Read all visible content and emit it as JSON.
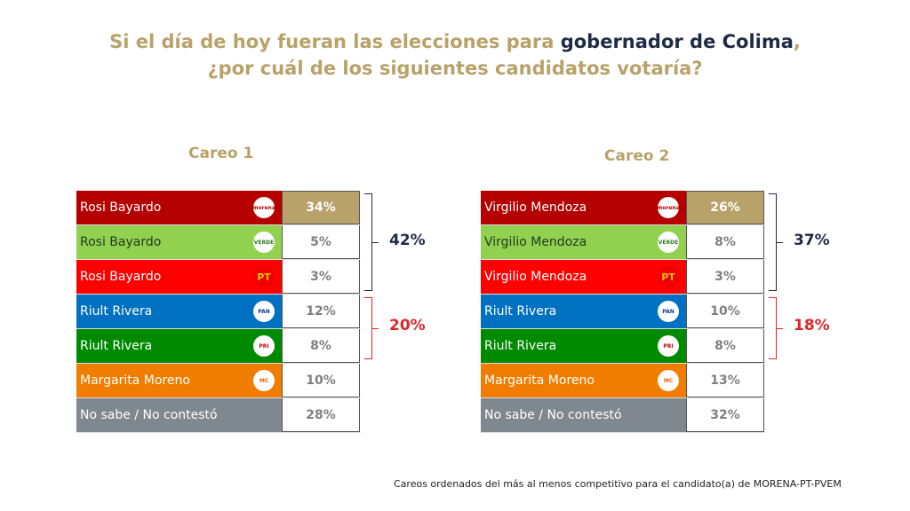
{
  "title": {
    "part1": "Si el día de hoy fueran las elecciones para ",
    "highlight": "gobernador de Colima",
    "part2": ",",
    "line2": "¿por cuál de los siguientes candidatos votaría?"
  },
  "colors": {
    "gold": "#b8a26a",
    "navy": "#1e2b45",
    "morena": "#b50000",
    "verde": "#92d050",
    "pt": "#ff0000",
    "pan": "#0070c0",
    "pri": "#008a00",
    "mc": "#f07c00",
    "ns": "#7f878f",
    "red_bracket": "#e0262b"
  },
  "footer": "Careos ordenados del más al menos competitivo para el candidato(a) de MORENA-PT-PVEM",
  "chart_data": [
    {
      "type": "table",
      "title": "Careo 1",
      "rows": [
        {
          "candidate": "Rosi Bayardo",
          "party": "morena",
          "logo": "morena",
          "value": "34%",
          "color": "#b50000",
          "text": "#fff",
          "highlight": true
        },
        {
          "candidate": "Rosi Bayardo",
          "party": "verde",
          "logo": "VERDE",
          "value": "5%",
          "color": "#92d050",
          "text": "#1f3b1f"
        },
        {
          "candidate": "Rosi Bayardo",
          "party": "pt",
          "logo": "PT",
          "value": "3%",
          "color": "#ff0000",
          "text": "#fff"
        },
        {
          "candidate": "Riult Rivera",
          "party": "pan",
          "logo": "PAN",
          "value": "12%",
          "color": "#0070c0",
          "text": "#fff"
        },
        {
          "candidate": "Riult Rivera",
          "party": "pri",
          "logo": "PRI",
          "value": "8%",
          "color": "#008a00",
          "text": "#fff"
        },
        {
          "candidate": "Margarita Moreno",
          "party": "mc",
          "logo": "MC",
          "value": "10%",
          "color": "#f07c00",
          "text": "#fff"
        },
        {
          "candidate": "No sabe / No contestó",
          "party": "",
          "logo": "",
          "value": "28%",
          "color": "#7f878f",
          "text": "#fff"
        }
      ],
      "groups": [
        {
          "total": "42%",
          "color": "#1e2b45"
        },
        {
          "total": "20%",
          "color": "#e0262b"
        }
      ]
    },
    {
      "type": "table",
      "title": "Careo 2",
      "rows": [
        {
          "candidate": "Virgilio Mendoza",
          "party": "morena",
          "logo": "morena",
          "value": "26%",
          "color": "#b50000",
          "text": "#fff",
          "highlight": true
        },
        {
          "candidate": "Virgilio Mendoza",
          "party": "verde",
          "logo": "VERDE",
          "value": "8%",
          "color": "#92d050",
          "text": "#1f3b1f"
        },
        {
          "candidate": "Virgilio Mendoza",
          "party": "pt",
          "logo": "PT",
          "value": "3%",
          "color": "#ff0000",
          "text": "#fff"
        },
        {
          "candidate": "Riult Rivera",
          "party": "pan",
          "logo": "PAN",
          "value": "10%",
          "color": "#0070c0",
          "text": "#fff"
        },
        {
          "candidate": "Riult Rivera",
          "party": "pri",
          "logo": "PRI",
          "value": "8%",
          "color": "#008a00",
          "text": "#fff"
        },
        {
          "candidate": "Margarita Moreno",
          "party": "mc",
          "logo": "MC",
          "value": "13%",
          "color": "#f07c00",
          "text": "#fff"
        },
        {
          "candidate": "No sabe / No contestó",
          "party": "",
          "logo": "",
          "value": "32%",
          "color": "#7f878f",
          "text": "#fff"
        }
      ],
      "groups": [
        {
          "total": "37%",
          "color": "#1e2b45"
        },
        {
          "total": "18%",
          "color": "#e0262b"
        }
      ]
    }
  ]
}
